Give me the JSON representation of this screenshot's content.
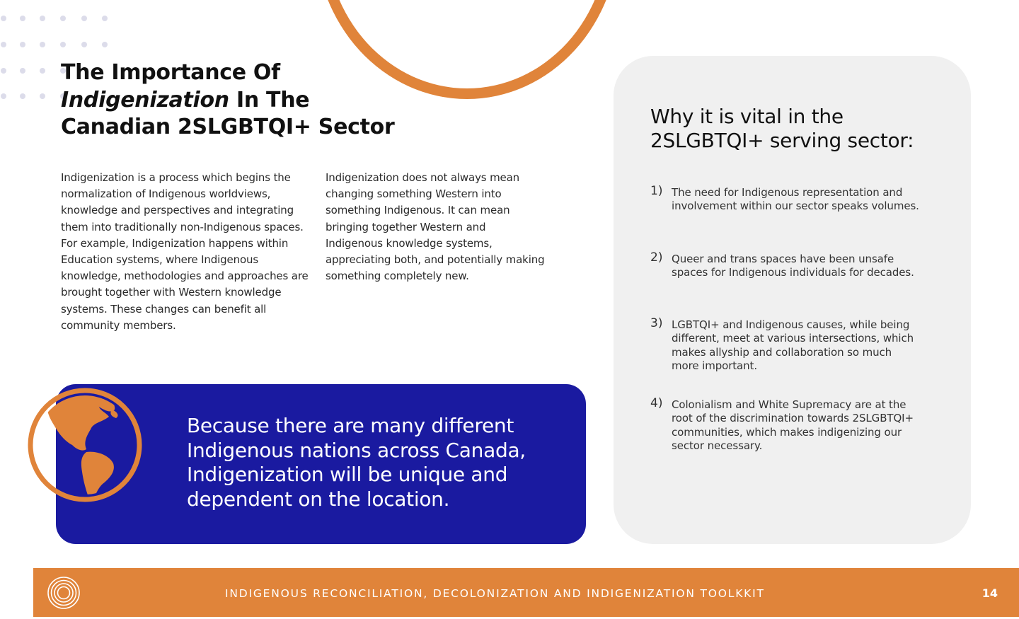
{
  "title": {
    "line1": "The Importance Of",
    "line2_italic": "Indigenization",
    "line2_rest": " In The",
    "line3": "Canadian 2SLGBTQI+ Sector"
  },
  "paragraphs": [
    "Indigenization is a process which begins the normalization of Indigenous worldviews, knowledge and perspectives and integrating them into traditionally non-Indigenous spaces. For example, Indigenization happens within Education systems, where Indigenous knowledge, methodologies and approaches are brought together with Western knowledge systems. These changes can benefit all community members.",
    "Indigenization does not always mean changing something Western into something Indigenous. It can mean bringing together Western and Indigenous knowledge systems, appreciating both, and potentially making something completely new."
  ],
  "quote": "Because there are many different Indigenous nations across Canada, Indigenization will be unique and dependent on the location.",
  "side_panel": {
    "title": "Why it is vital in the 2SLGBTQI+ serving sector:",
    "reasons": [
      {
        "num": "1)",
        "text": "The need for Indigenous representation and involvement within our sector speaks volumes."
      },
      {
        "num": "2)",
        "text": "Queer and trans spaces have been unsafe spaces for Indigenous individuals for decades."
      },
      {
        "num": "3)",
        "text": "LGBTQI+ and Indigenous causes, while being different, meet at various intersections, which makes allyship and collaboration so much more important."
      },
      {
        "num": "4)",
        "text": "Colonialism and White Supremacy are at the root of the discrimination towards 2SLGBTQI+ communities, which makes indigenizing our sector necessary."
      }
    ]
  },
  "footer": {
    "title": "INDIGENOUS RECONCILIATION, DECOLONIZATION AND INDIGENIZATION TOOLKKIT",
    "page": "14"
  },
  "colors": {
    "accent_orange": "#e0843a",
    "card_blue": "#1a1aa0",
    "panel_gray": "#f0f0f0"
  },
  "icons": [
    "globe-icon",
    "footer-logo-icon"
  ]
}
